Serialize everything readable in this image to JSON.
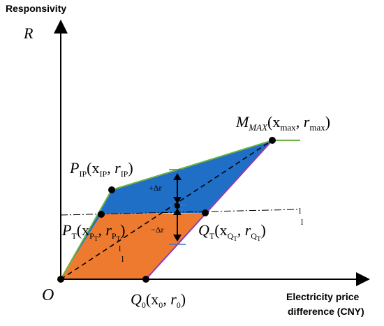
{
  "y_axis": {
    "title": "Responsivity",
    "symbol": "R"
  },
  "x_axis": {
    "title_line1": "Electricity price",
    "title_line2": "difference (CNY)"
  },
  "origin_label": "O",
  "points": {
    "q0": {
      "main": "Q",
      "sub": "0",
      "coords": "(x",
      "sub1": "0",
      "mid": ", r",
      "sub2": "0",
      "end": ")"
    },
    "p_ip": {
      "main": "P",
      "sub": "IP",
      "coords": "(x",
      "sub1": "IP",
      "mid": ", r",
      "sub2": "IP",
      "end": ")"
    },
    "p_t": {
      "main": "P",
      "sub": "T",
      "coords": "(x",
      "sub1": "P",
      "subsub1": "T",
      "mid": ", r",
      "sub2": "P",
      "subsub2": "T",
      "end": ")"
    },
    "q_t": {
      "main": "Q",
      "sub": "T",
      "coords": "(x",
      "sub1": "Q",
      "subsub1": "T",
      "mid": ", r",
      "sub2": "Q",
      "subsub2": "T",
      "end": ")"
    },
    "m_max": {
      "main": "M",
      "sub": "MAX",
      "coords": "(x",
      "sub1": "max",
      "mid": ", r",
      "sub2": "max",
      "end": ")"
    }
  },
  "delta": {
    "plus": "+Δr",
    "minus": "−Δr"
  },
  "colors": {
    "blue": "#1f6fc7",
    "orange": "#ee7a30",
    "green": "#6fb33f",
    "purple": "#8e3bb5",
    "marker": "#4a70c0"
  }
}
